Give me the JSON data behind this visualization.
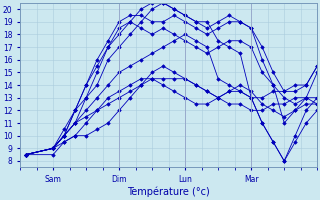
{
  "xlabel": "Température (°c)",
  "background_color": "#cce8f0",
  "grid_color": "#aaccdd",
  "line_color": "#0000bb",
  "xlim": [
    -12,
    96
  ],
  "ylim": [
    7.5,
    20.5
  ],
  "yticks": [
    8,
    9,
    10,
    11,
    12,
    13,
    14,
    15,
    16,
    17,
    18,
    19,
    20
  ],
  "day_ticks": [
    0,
    24,
    48,
    72,
    96
  ],
  "day_labels": [
    "Sam",
    "Dim",
    "Lun",
    "Mar"
  ],
  "origin_x": -10,
  "origin_y": 8.5,
  "series": [
    {
      "pts_x": [
        -10,
        0,
        4,
        8,
        12,
        16,
        20,
        24,
        28,
        32,
        36,
        40,
        44,
        48,
        52,
        56,
        60,
        64,
        68,
        72,
        76,
        80,
        84,
        88,
        92,
        96
      ],
      "pts_y": [
        8.5,
        9,
        9.5,
        10,
        10,
        10.5,
        11,
        12,
        13,
        14,
        15,
        15.5,
        15,
        14.5,
        14,
        13.5,
        13,
        12.5,
        12.5,
        12,
        12,
        12.5,
        12.5,
        13,
        13,
        12.5
      ]
    },
    {
      "pts_x": [
        -10,
        0,
        4,
        8,
        12,
        16,
        20,
        24,
        28,
        32,
        36,
        40,
        44,
        48,
        52,
        56,
        60,
        64,
        68,
        72,
        76,
        80,
        84,
        88,
        92,
        96
      ],
      "pts_y": [
        8.5,
        9,
        10,
        11,
        11.5,
        12,
        13,
        13.5,
        14,
        14.5,
        14.5,
        14,
        13.5,
        13,
        12.5,
        12.5,
        13,
        13.5,
        13.5,
        13,
        13,
        13.5,
        13.5,
        14,
        14,
        15.5
      ]
    },
    {
      "pts_x": [
        -10,
        0,
        4,
        8,
        12,
        16,
        20,
        24,
        28,
        32,
        36,
        40,
        44,
        48,
        52,
        56,
        60,
        64,
        68,
        72,
        76,
        80,
        84,
        88,
        92,
        96
      ],
      "pts_y": [
        8.5,
        9,
        10,
        11,
        12,
        13,
        14,
        15,
        15.5,
        16,
        16.5,
        17,
        17.5,
        18,
        17.5,
        17,
        14.5,
        14,
        13.5,
        13,
        11,
        9.5,
        8,
        9.5,
        11,
        12
      ]
    },
    {
      "pts_x": [
        -10,
        0,
        4,
        8,
        12,
        16,
        20,
        24,
        28,
        32,
        36,
        40,
        44,
        48,
        52,
        56,
        60,
        64,
        68,
        72,
        76,
        80,
        84,
        88,
        92,
        96
      ],
      "pts_y": [
        8.5,
        9,
        10,
        11,
        13,
        14,
        16,
        17,
        18,
        19,
        20,
        20.5,
        20,
        19.5,
        19,
        19,
        17.5,
        17,
        16.5,
        13,
        11,
        9.5,
        8,
        10,
        12,
        13
      ]
    },
    {
      "pts_x": [
        -10,
        0,
        4,
        8,
        12,
        16,
        20,
        24,
        28,
        32,
        36,
        40,
        44,
        48,
        52,
        56,
        60,
        64,
        68,
        72,
        76,
        80,
        84,
        88,
        92,
        96
      ],
      "pts_y": [
        8.5,
        9,
        10,
        12,
        13,
        15,
        17,
        18,
        19,
        20,
        20.5,
        20.5,
        20,
        19.5,
        19,
        18.5,
        19,
        19.5,
        19,
        18.5,
        16,
        14,
        11,
        12,
        13,
        15
      ]
    },
    {
      "pts_x": [
        -10,
        0,
        4,
        8,
        12,
        16,
        20,
        24,
        28,
        32,
        36,
        40,
        44,
        48,
        52,
        56,
        60,
        64,
        68,
        72,
        76,
        80,
        84,
        88,
        92,
        96
      ],
      "pts_y": [
        8.5,
        9,
        10,
        12,
        14,
        16,
        17.5,
        19,
        19.5,
        19.5,
        19,
        19,
        19.5,
        19,
        18.5,
        18,
        18.5,
        19,
        19,
        18.5,
        17,
        15,
        13.5,
        13.5,
        14,
        15.5
      ]
    },
    {
      "pts_x": [
        -10,
        0,
        4,
        8,
        12,
        16,
        20,
        24,
        28,
        32,
        36,
        40,
        44,
        48,
        52,
        56,
        60,
        64,
        68,
        72,
        76,
        80,
        84,
        88,
        92,
        96
      ],
      "pts_y": [
        8.5,
        9,
        10.5,
        12,
        14,
        15.5,
        17,
        18.5,
        19,
        18.5,
        18,
        18.5,
        18,
        17.5,
        17,
        16.5,
        17,
        17.5,
        17.5,
        17,
        15,
        14,
        13,
        12.5,
        13,
        13
      ]
    },
    {
      "pts_x": [
        -10,
        0,
        4,
        8,
        12,
        16,
        20,
        24,
        28,
        32,
        36,
        40,
        44,
        48,
        52,
        56,
        60,
        64,
        68,
        72,
        76,
        80,
        84,
        88,
        92,
        96
      ],
      "pts_y": [
        8.5,
        8.5,
        9.5,
        10,
        11,
        12,
        12.5,
        13,
        13.5,
        14,
        14.5,
        14.5,
        14.5,
        14.5,
        14,
        13.5,
        13,
        13.5,
        14,
        13.5,
        12.5,
        12,
        11.5,
        12,
        12.5,
        12.5
      ]
    }
  ]
}
